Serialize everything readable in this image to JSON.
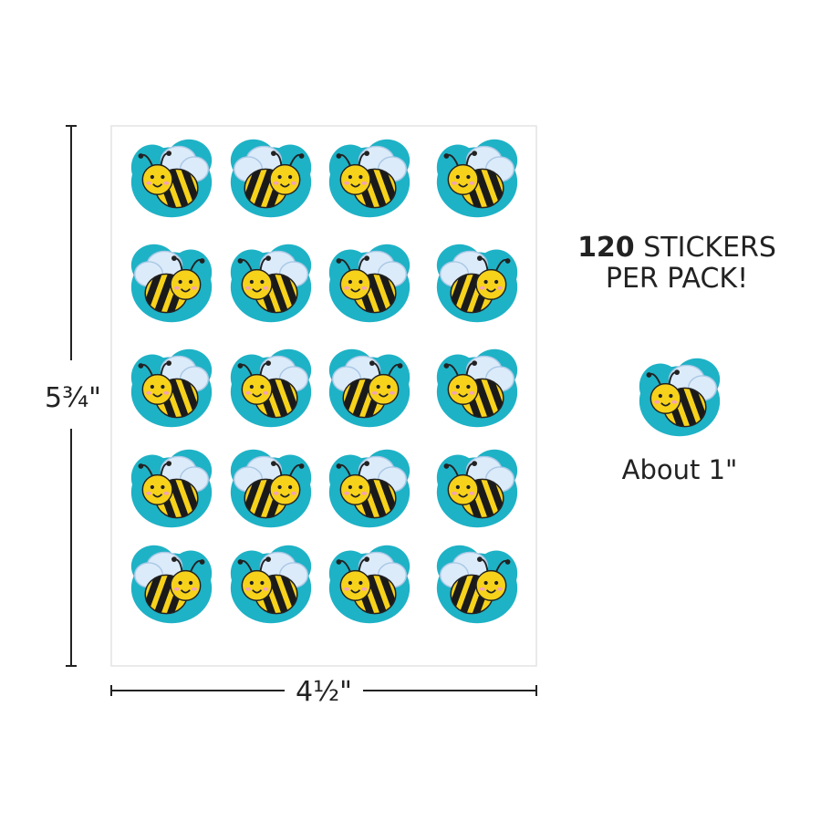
{
  "sheet": {
    "height_label": "5¾\"",
    "width_label": "4½\""
  },
  "callout": {
    "count": "120",
    "line1": "STICKERS",
    "line2": "PER PACK!"
  },
  "sample": {
    "label": "About 1\""
  }
}
